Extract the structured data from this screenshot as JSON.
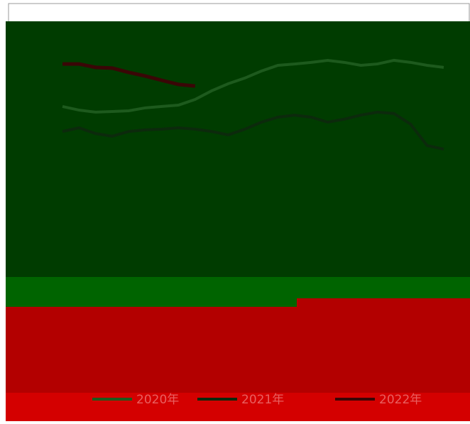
{
  "chart_data": {
    "type": "line",
    "categories": [
      null,
      null,
      null,
      null,
      null,
      null,
      null,
      null,
      null,
      null,
      null,
      null,
      null,
      null,
      null,
      null,
      null,
      null,
      null,
      null,
      null,
      null,
      null,
      null
    ],
    "ylim": [
      0,
      100
    ],
    "legend": "bottom",
    "series": [
      {
        "name": "2020年",
        "color": "#1d5a1d",
        "values": [
          71.9,
          70.3,
          69.4,
          69.7,
          70,
          71.3,
          71.9,
          72.5,
          75,
          78.8,
          81.9,
          84.4,
          87.5,
          90,
          90.6,
          91.3,
          92.2,
          91.3,
          90,
          90.6,
          92.2,
          91.3,
          90,
          89.1
        ]
      },
      {
        "name": "2021年",
        "color": "#0c2a0c",
        "values": [
          60.9,
          62.5,
          60,
          58.8,
          60.9,
          61.6,
          61.9,
          62.5,
          61.9,
          60.9,
          59.4,
          61.9,
          65,
          67.2,
          68.1,
          67.2,
          65,
          66.3,
          68.1,
          69.4,
          68.8,
          64.1,
          54.7,
          53.1
        ]
      },
      {
        "name": "2022年",
        "color": "#3a0606",
        "values": [
          90.6,
          90.6,
          89.1,
          88.8,
          86.9,
          85.3,
          83.4,
          81.6,
          80.9,
          null,
          null,
          null,
          null,
          null,
          null,
          null,
          null,
          null,
          null,
          null,
          null,
          null,
          null,
          null
        ]
      }
    ]
  }
}
